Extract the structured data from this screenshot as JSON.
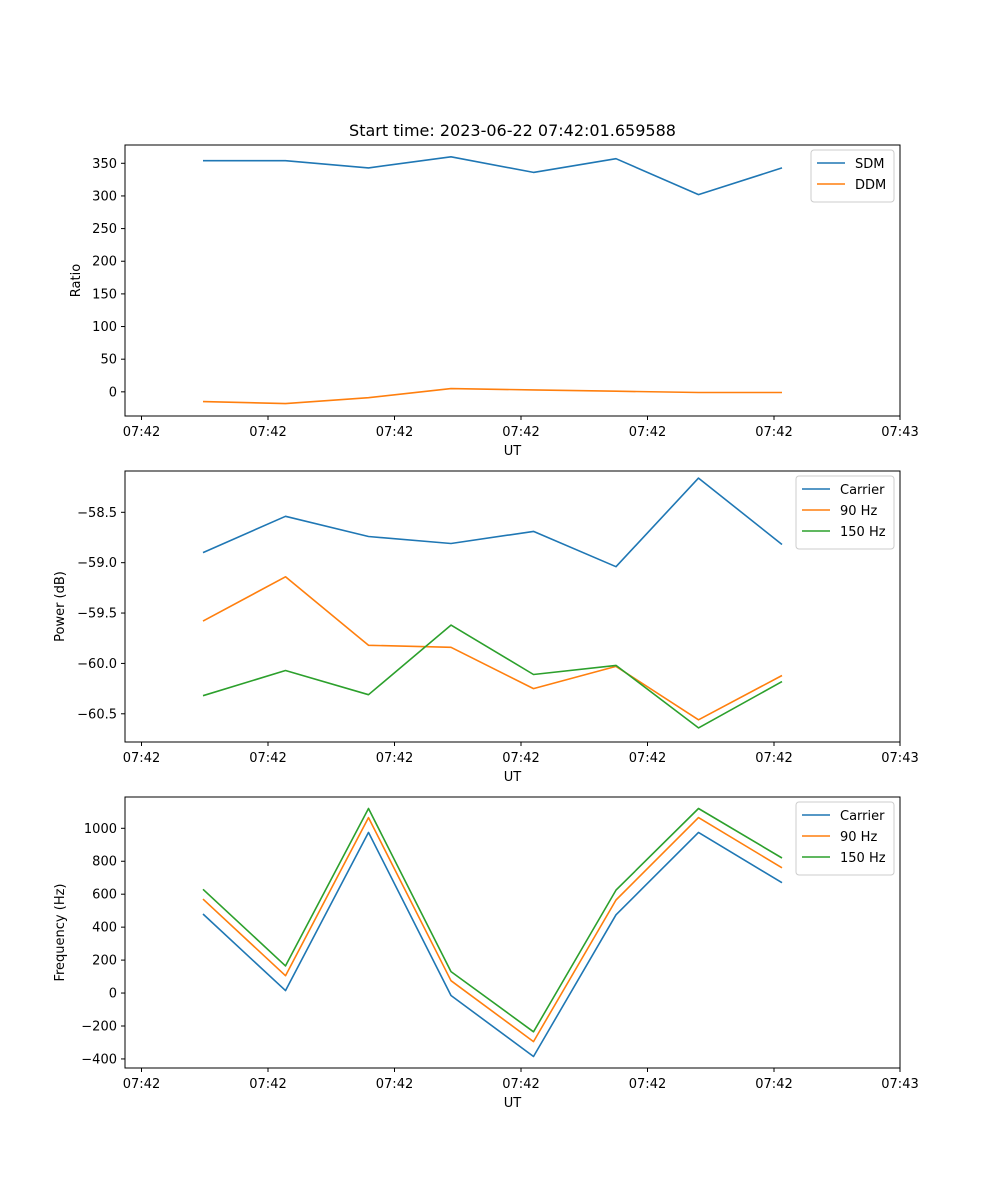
{
  "figure": {
    "title": "Start time: 2023-06-22 07:42:01.659588"
  },
  "chart_data": [
    {
      "type": "line",
      "title": "Start time: 2023-06-22 07:42:01.659588",
      "xlabel": "UT",
      "ylabel": "Ratio",
      "x_tick_labels": [
        "07:42",
        "07:42",
        "07:42",
        "07:42",
        "07:42",
        "07:42",
        "07:43"
      ],
      "y_ticks": [
        0,
        50,
        100,
        150,
        200,
        250,
        300,
        350
      ],
      "y_tick_labels": [
        "0",
        "50",
        "100",
        "150",
        "200",
        "250",
        "300",
        "350"
      ],
      "ylim": [
        -37,
        378
      ],
      "legend_position": "top-right",
      "series": [
        {
          "name": "SDM",
          "color": "#1f77b4",
          "values": [
            354,
            354,
            343,
            360,
            336,
            357,
            302,
            343
          ]
        },
        {
          "name": "DDM",
          "color": "#ff7f0e",
          "values": [
            -15,
            -18,
            -9,
            5,
            3,
            1,
            -1,
            -1
          ]
        }
      ]
    },
    {
      "type": "line",
      "xlabel": "UT",
      "ylabel": "Power (dB)",
      "x_tick_labels": [
        "07:42",
        "07:42",
        "07:42",
        "07:42",
        "07:42",
        "07:42",
        "07:43"
      ],
      "y_ticks": [
        -58.5,
        -59.0,
        -59.5,
        -60.0,
        -60.5
      ],
      "y_tick_labels": [
        "−58.5",
        "−59.0",
        "−59.5",
        "−60.0",
        "−60.5"
      ],
      "ylim": [
        -60.78,
        -58.09
      ],
      "legend_position": "top-right",
      "series": [
        {
          "name": "Carrier",
          "color": "#1f77b4",
          "values": [
            -58.9,
            -58.54,
            -58.74,
            -58.81,
            -58.69,
            -59.04,
            -58.16,
            -58.82
          ]
        },
        {
          "name": "90 Hz",
          "color": "#ff7f0e",
          "values": [
            -59.58,
            -59.14,
            -59.82,
            -59.84,
            -60.25,
            -60.03,
            -60.56,
            -60.12
          ]
        },
        {
          "name": "150 Hz",
          "color": "#2ca02c",
          "values": [
            -60.32,
            -60.07,
            -60.31,
            -59.62,
            -60.11,
            -60.02,
            -60.64,
            -60.18
          ]
        }
      ]
    },
    {
      "type": "line",
      "xlabel": "UT",
      "ylabel": "Frequency (Hz)",
      "x_tick_labels": [
        "07:42",
        "07:42",
        "07:42",
        "07:42",
        "07:42",
        "07:42",
        "07:43"
      ],
      "y_ticks": [
        -400,
        -200,
        0,
        200,
        400,
        600,
        800,
        1000
      ],
      "y_tick_labels": [
        "−400",
        "−200",
        "0",
        "200",
        "400",
        "600",
        "800",
        "1000"
      ],
      "ylim": [
        -455,
        1190
      ],
      "legend_position": "top-right",
      "series": [
        {
          "name": "Carrier",
          "color": "#1f77b4",
          "values": [
            480,
            15,
            975,
            -15,
            -385,
            475,
            975,
            670
          ]
        },
        {
          "name": "90 Hz",
          "color": "#ff7f0e",
          "values": [
            570,
            105,
            1065,
            75,
            -295,
            565,
            1065,
            760
          ]
        },
        {
          "name": "150 Hz",
          "color": "#2ca02c",
          "values": [
            630,
            165,
            1120,
            130,
            -235,
            625,
            1120,
            820
          ]
        }
      ]
    }
  ]
}
